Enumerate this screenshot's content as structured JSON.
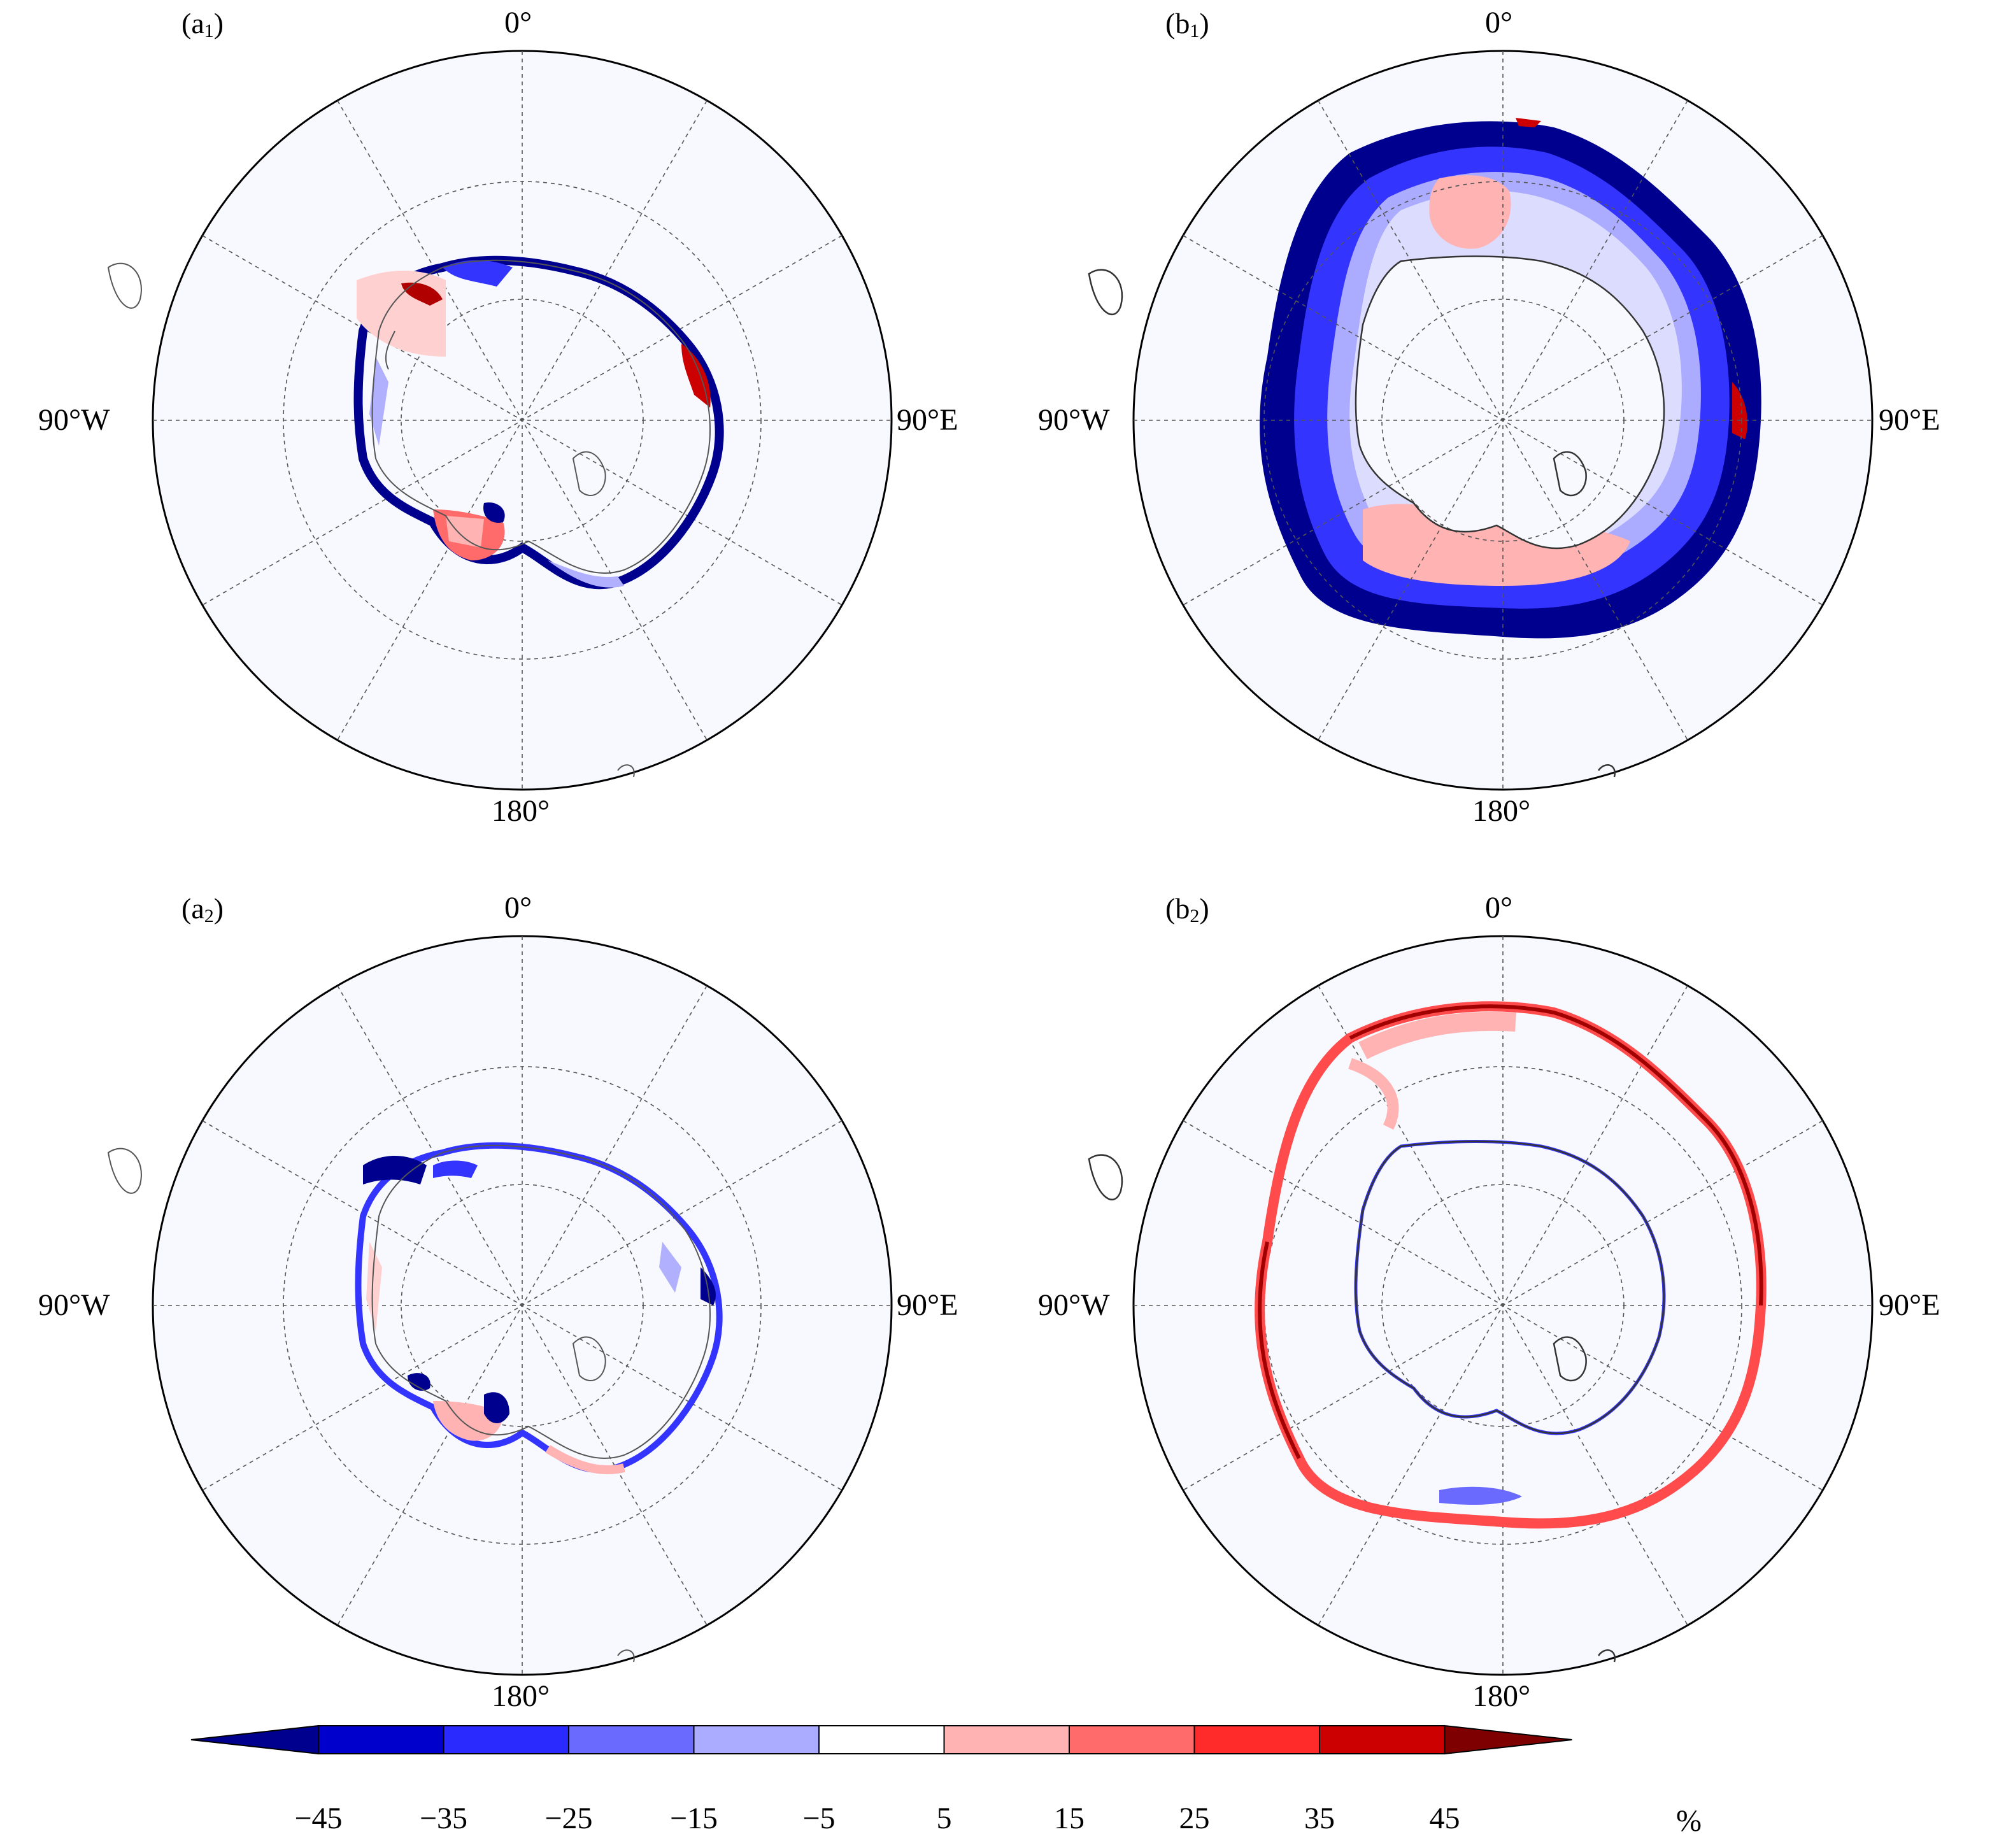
{
  "panels": [
    {
      "id": "a1",
      "letter": "a",
      "sub": "1",
      "lon_top": "0°",
      "lon_left": "90°W",
      "lon_right": "90°E",
      "lon_bottom": "180°"
    },
    {
      "id": "b1",
      "letter": "b",
      "sub": "1",
      "lon_top": "0°",
      "lon_left": "90°W",
      "lon_right": "90°E",
      "lon_bottom": "180°"
    },
    {
      "id": "a2",
      "letter": "a",
      "sub": "2",
      "lon_top": "0°",
      "lon_left": "90°W",
      "lon_right": "90°E",
      "lon_bottom": "180°"
    },
    {
      "id": "b2",
      "letter": "b",
      "sub": "2",
      "lon_top": "0°",
      "lon_left": "90°W",
      "lon_right": "90°E",
      "lon_bottom": "180°"
    }
  ],
  "colorbar": {
    "ticks": [
      "−45",
      "−35",
      "−25",
      "−15",
      "−5",
      "5",
      "15",
      "25",
      "35",
      "45"
    ],
    "unit": "%",
    "colors": [
      "#00008f",
      "#0000cc",
      "#2a2aff",
      "#6a6aff",
      "#ababff",
      "#ffffff",
      "#ffb3b3",
      "#ff6a6a",
      "#ff2a2a",
      "#cc0000",
      "#7f0000"
    ]
  },
  "colors": {
    "ocean": "#f8f9ff",
    "strong_blue": "#00008f",
    "mid_blue": "#3434ff",
    "light_blue": "#b0b0ff",
    "light_red": "#ffb3b3",
    "mid_red": "#ff4b4b",
    "dark_red": "#a00000"
  }
}
